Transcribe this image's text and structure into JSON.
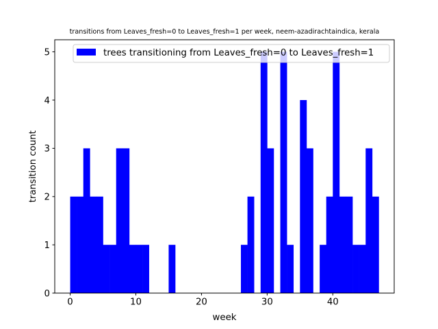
{
  "chart_data": {
    "type": "bar",
    "title": "transitions from Leaves_fresh=0 to Leaves_fresh=1 per week, neem-azadirachtaindica, kerala",
    "xlabel": "week",
    "ylabel": "transition count",
    "xlim": [
      -2.35,
      49.35
    ],
    "ylim": [
      0,
      5.25
    ],
    "bin_width": 1,
    "x_ticks": [
      0,
      10,
      20,
      30,
      40
    ],
    "y_ticks": [
      0,
      1,
      2,
      3,
      4,
      5
    ],
    "color": "#0000ff",
    "grid": false,
    "legend_position": "upper-right",
    "series": [
      {
        "name": "trees transitioning from Leaves_fresh=0 to Leaves_fresh=1",
        "x": [
          0,
          1,
          2,
          3,
          4,
          5,
          6,
          7,
          8,
          9,
          10,
          11,
          15,
          26,
          27,
          29,
          30,
          32,
          33,
          35,
          36,
          38,
          39,
          40,
          41,
          42,
          43,
          44,
          45,
          46
        ],
        "values": [
          2,
          2,
          3,
          2,
          2,
          1,
          1,
          3,
          3,
          1,
          1,
          1,
          1,
          1,
          2,
          5,
          3,
          5,
          1,
          4,
          3,
          1,
          2,
          5,
          2,
          2,
          1,
          1,
          3,
          2
        ]
      }
    ]
  }
}
